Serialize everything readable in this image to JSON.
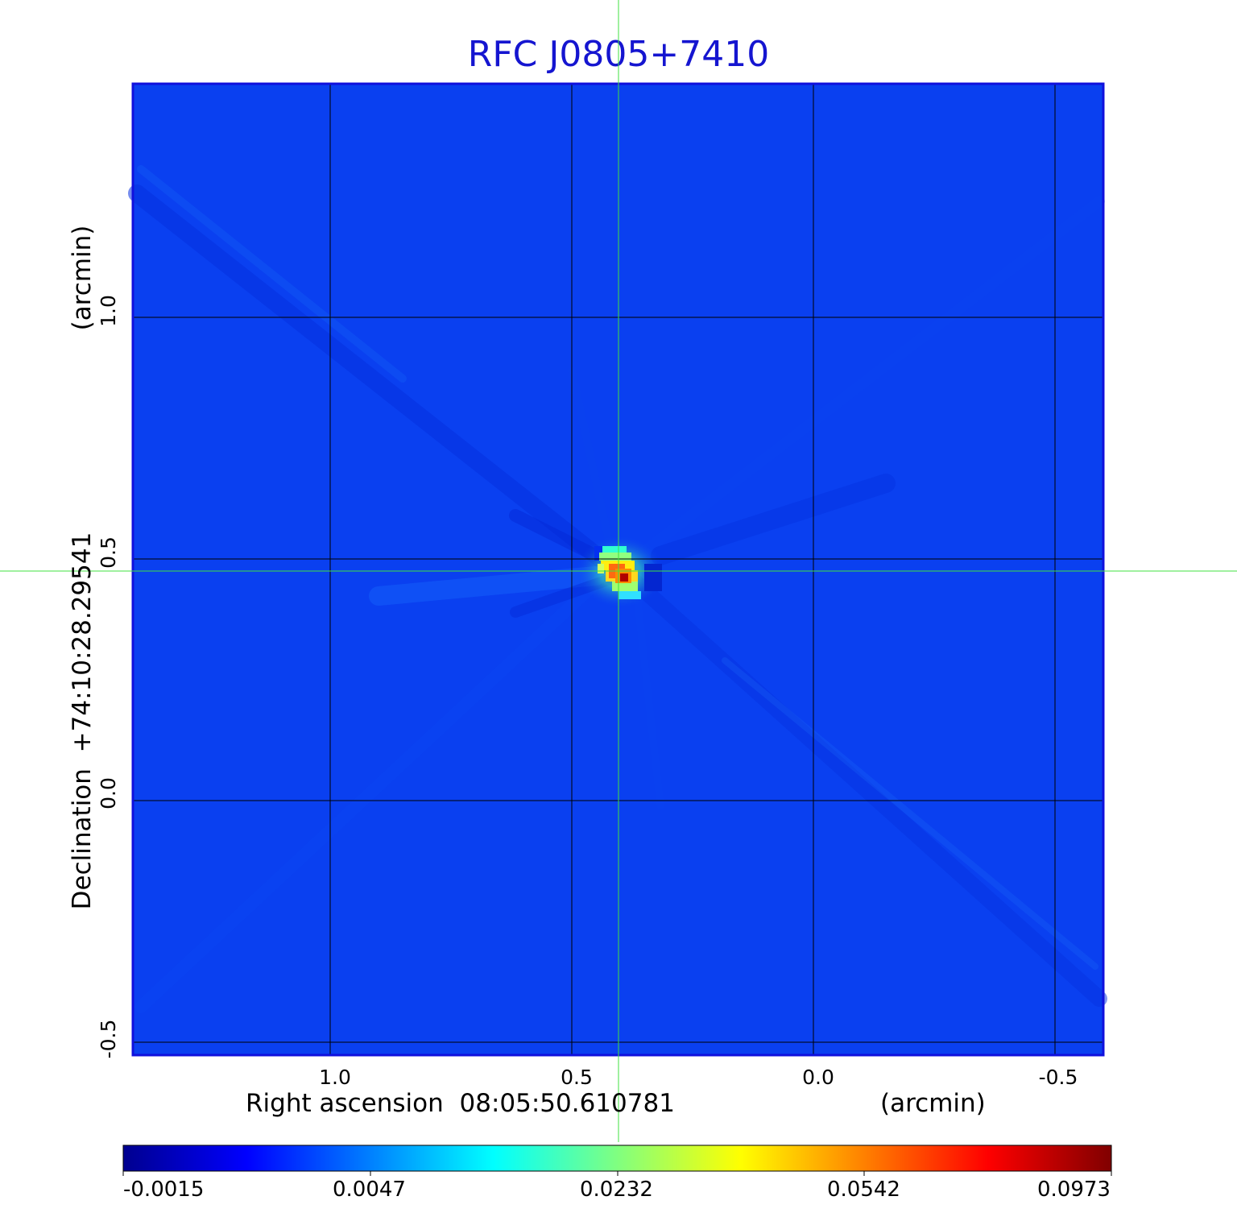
{
  "plot": {
    "title": "RFC J0805+7410",
    "x_axis": {
      "label": "Right ascension",
      "center": "08:05:50.610781",
      "unit": "(arcmin)",
      "ticks": [
        "1.0",
        "0.5",
        "0.0",
        "-0.5"
      ],
      "tick_values": [
        1.0,
        0.5,
        0.0,
        -0.5
      ],
      "range": [
        1.41,
        -0.6
      ]
    },
    "y_axis": {
      "label": "Declination",
      "center": "+74:10:28.29541",
      "unit": "(arcmin)",
      "ticks": [
        "1.0",
        "0.5",
        "0.0",
        "-0.5"
      ],
      "tick_values": [
        1.0,
        0.5,
        0.0,
        -0.5
      ],
      "range": [
        -0.52,
        1.49
      ]
    },
    "source_position": {
      "x_arcmin": 0.4,
      "y_arcmin": 0.475
    },
    "grid": true,
    "crosshair_color": "#40e040"
  },
  "colorbar": {
    "ticks": [
      "-0.0015",
      "0.0047",
      "0.0232",
      "0.0542",
      "0.0973"
    ],
    "tick_values": [
      -0.0015,
      0.0047,
      0.0232,
      0.0542,
      0.0973
    ],
    "colormap": "jet",
    "colors": [
      "#00008f",
      "#0000ff",
      "#0080ff",
      "#00ffff",
      "#80ff80",
      "#ffff00",
      "#ff8000",
      "#ff0000",
      "#800000"
    ]
  }
}
